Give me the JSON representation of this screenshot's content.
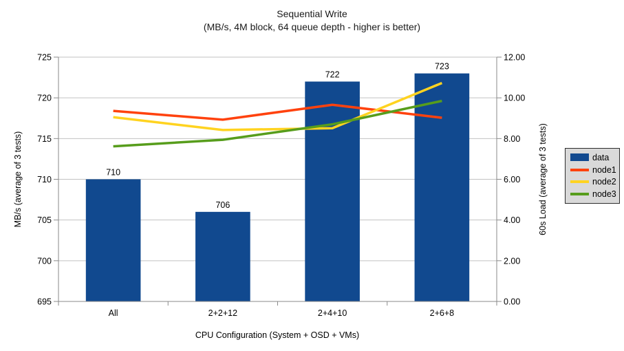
{
  "chart_data": {
    "type": "bar+line",
    "title": "Sequential Write",
    "subtitle": "(MB/s, 4M block, 64 queue depth - higher is better)",
    "categories": [
      "All",
      "2+2+12",
      "2+4+10",
      "2+6+8"
    ],
    "bar_series": {
      "name": "data",
      "axis": "left",
      "color": "#11498F",
      "values": [
        710,
        706,
        722,
        723
      ]
    },
    "line_series": [
      {
        "name": "node1",
        "axis": "right",
        "color": "#FF420E",
        "values": [
          9.36,
          8.93,
          9.66,
          9.02
        ]
      },
      {
        "name": "node2",
        "axis": "right",
        "color": "#FFD320",
        "values": [
          9.05,
          8.42,
          8.51,
          10.73
        ]
      },
      {
        "name": "node3",
        "axis": "right",
        "color": "#579D1C",
        "values": [
          7.62,
          7.94,
          8.7,
          9.85
        ]
      }
    ],
    "axes": {
      "y_left": {
        "label": "MB/s (average of 3 tests)",
        "min": 695,
        "max": 725,
        "ticks": [
          725,
          720,
          715,
          710,
          705,
          700,
          695
        ]
      },
      "y_right": {
        "label": "60s Load (average of 3 tests)",
        "min": 0,
        "max": 12,
        "ticks": [
          "12.00",
          "10.00",
          "8.00",
          "6.00",
          "4.00",
          "2.00",
          "0.00"
        ]
      },
      "x": {
        "label": "CPU Configuration (System + OSD + VMs)"
      }
    },
    "legend": {
      "position": "right",
      "items": [
        "data",
        "node1",
        "node2",
        "node3"
      ]
    },
    "grid": "horizontal",
    "style": {
      "background": "#FFFFFF",
      "gridline_color": "#C2C2C2",
      "axis_color": "#8A8A8A",
      "text_color": "#000000",
      "legend_bg": "#D9D9D9",
      "legend_border": "#2B2B2B"
    }
  }
}
